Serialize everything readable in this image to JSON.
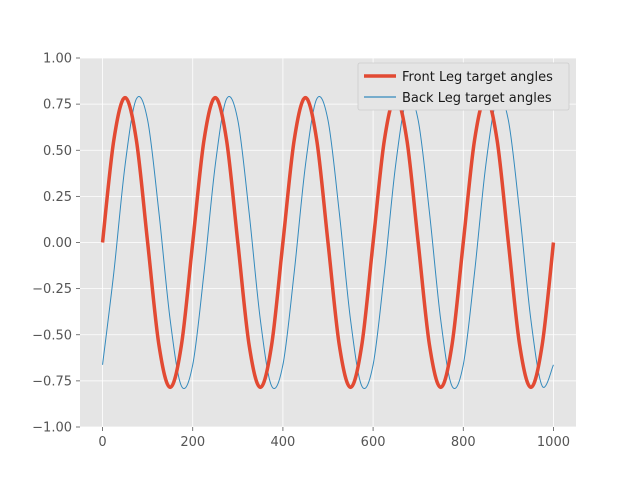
{
  "chart_data": {
    "type": "line",
    "title": "",
    "xlabel": "",
    "ylabel": "",
    "xlim": [
      -50,
      1050
    ],
    "ylim": [
      -1.0,
      1.0
    ],
    "xticks": [
      0,
      200,
      400,
      600,
      800,
      1000
    ],
    "xtick_labels": [
      "0",
      "200",
      "400",
      "600",
      "800",
      "1000"
    ],
    "yticks": [
      -1.0,
      -0.75,
      -0.5,
      -0.25,
      0.0,
      0.25,
      0.5,
      0.75,
      1.0
    ],
    "ytick_labels": [
      "−1.00",
      "−0.75",
      "−0.50",
      "−0.25",
      "0.00",
      "0.25",
      "0.50",
      "0.75",
      "1.00"
    ],
    "grid": true,
    "legend_position": "top-right",
    "style": "ggplot",
    "colors": {
      "plot_bg": "#E5E5E5",
      "grid": "#FFFFFF",
      "front": "#E24A33",
      "back": "#348ABD"
    },
    "x": [
      0,
      25,
      50,
      75,
      100,
      125,
      150,
      175,
      200,
      225,
      250,
      275,
      300,
      325,
      350,
      375,
      400,
      425,
      450,
      475,
      500,
      525,
      550,
      575,
      600,
      625,
      650,
      675,
      700,
      725,
      750,
      775,
      800,
      825,
      850,
      875,
      900,
      925,
      950,
      975,
      1000
    ],
    "series": [
      {
        "name": "Front Leg target angles",
        "values": [
          0.0,
          0.555,
          0.785,
          0.555,
          0.0,
          -0.555,
          -0.785,
          -0.555,
          0.0,
          0.555,
          0.785,
          0.555,
          0.0,
          -0.555,
          -0.785,
          -0.555,
          0.0,
          0.555,
          0.785,
          0.555,
          0.0,
          -0.555,
          -0.785,
          -0.555,
          0.0,
          0.555,
          0.785,
          0.555,
          0.0,
          -0.555,
          -0.785,
          -0.555,
          0.0,
          0.555,
          0.785,
          0.555,
          0.0,
          -0.555,
          -0.785,
          -0.555,
          0.0
        ]
      },
      {
        "name": "Back Leg target angles",
        "values": [
          -0.663,
          -0.163,
          0.42,
          0.778,
          0.663,
          0.163,
          -0.42,
          -0.778,
          -0.663,
          -0.163,
          0.42,
          0.778,
          0.663,
          0.163,
          -0.42,
          -0.778,
          -0.663,
          -0.163,
          0.42,
          0.778,
          0.663,
          0.163,
          -0.42,
          -0.778,
          -0.663,
          -0.163,
          0.42,
          0.778,
          0.663,
          0.163,
          -0.42,
          -0.778,
          -0.663,
          -0.163,
          0.42,
          0.778,
          0.663,
          0.163,
          -0.42,
          -0.778,
          -0.663
        ]
      }
    ]
  }
}
